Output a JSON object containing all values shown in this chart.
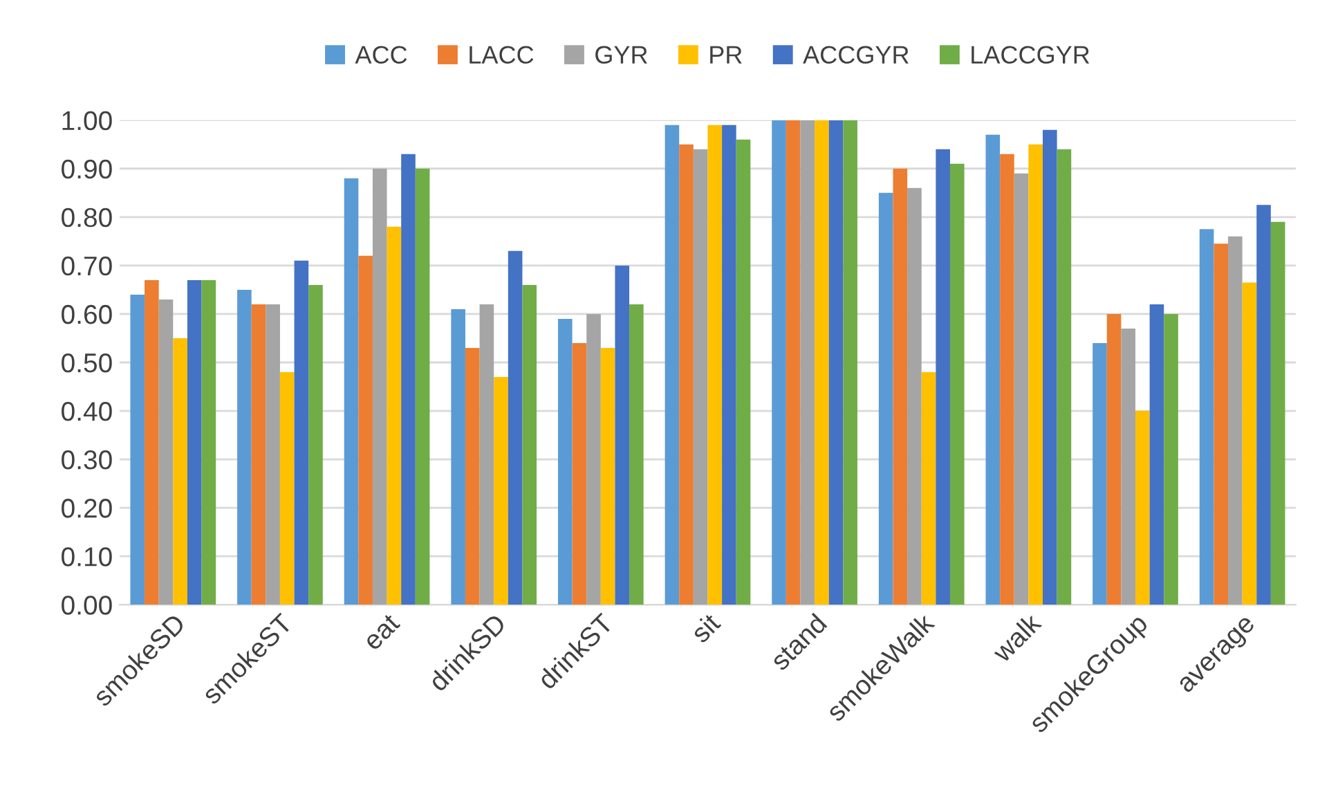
{
  "chart_data": {
    "type": "bar",
    "categories": [
      "smokeSD",
      "smokeST",
      "eat",
      "drinkSD",
      "drinkST",
      "sit",
      "stand",
      "smokeWalk",
      "walk",
      "smokeGroup",
      "average"
    ],
    "series": [
      {
        "name": "ACC",
        "color": "#5b9bd5",
        "values": [
          0.64,
          0.65,
          0.88,
          0.61,
          0.59,
          0.99,
          1.0,
          0.85,
          0.97,
          0.54,
          0.775
        ]
      },
      {
        "name": "LACC",
        "color": "#ed7d31",
        "values": [
          0.67,
          0.62,
          0.72,
          0.53,
          0.54,
          0.95,
          1.0,
          0.9,
          0.93,
          0.6,
          0.745
        ]
      },
      {
        "name": "GYR",
        "color": "#a5a5a5",
        "values": [
          0.63,
          0.62,
          0.9,
          0.62,
          0.6,
          0.94,
          1.0,
          0.86,
          0.89,
          0.57,
          0.76
        ]
      },
      {
        "name": "PR",
        "color": "#ffc000",
        "values": [
          0.55,
          0.48,
          0.78,
          0.47,
          0.53,
          0.99,
          1.0,
          0.48,
          0.95,
          0.4,
          0.665
        ]
      },
      {
        "name": "ACCGYR",
        "color": "#4472c4",
        "values": [
          0.67,
          0.71,
          0.93,
          0.73,
          0.7,
          0.99,
          1.0,
          0.94,
          0.98,
          0.62,
          0.825
        ]
      },
      {
        "name": "LACCGYR",
        "color": "#70ad47",
        "values": [
          0.67,
          0.66,
          0.9,
          0.66,
          0.62,
          0.96,
          1.0,
          0.91,
          0.94,
          0.6,
          0.79
        ]
      }
    ],
    "ylim": [
      0,
      1
    ],
    "yticks": [
      {
        "value": 0,
        "label": "0.00"
      },
      {
        "value": 0.1,
        "label": "0.10"
      },
      {
        "value": 0.2,
        "label": "0.20"
      },
      {
        "value": 0.3,
        "label": "0.30"
      },
      {
        "value": 0.4,
        "label": "0.40"
      },
      {
        "value": 0.5,
        "label": "0.50"
      },
      {
        "value": 0.6,
        "label": "0.60"
      },
      {
        "value": 0.7,
        "label": "0.70"
      },
      {
        "value": 0.8,
        "label": "0.80"
      },
      {
        "value": 0.9,
        "label": "0.90"
      },
      {
        "value": 1.0,
        "label": "1.00"
      }
    ],
    "grid": "y",
    "legend": "top"
  }
}
